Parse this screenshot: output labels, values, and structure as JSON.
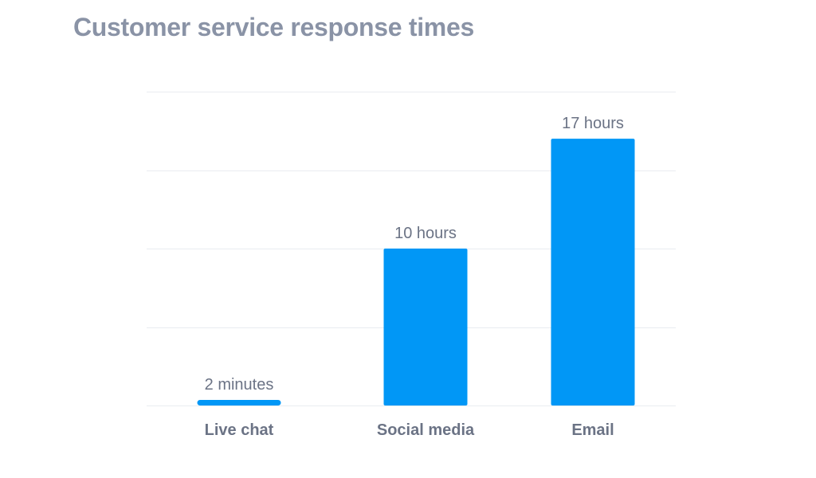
{
  "page": {
    "title": "Customer service response times"
  },
  "chart_data": {
    "type": "bar",
    "title": "Customer service response times",
    "xlabel": "",
    "ylabel": "",
    "unit": "hours",
    "categories": [
      "Live chat",
      "Social media",
      "Email"
    ],
    "values": [
      0.0333,
      10,
      17
    ],
    "data_labels": [
      "2 minutes",
      "10 hours",
      "17 hours"
    ],
    "ylim": [
      0,
      20
    ],
    "gridlines": [
      0,
      5,
      10,
      15,
      20
    ],
    "grid": true,
    "legend": "none",
    "colors": {
      "bar": "#0197f6",
      "grid": "#e9ecf0",
      "title": "#8a93a6",
      "label": "#6b7385"
    }
  }
}
